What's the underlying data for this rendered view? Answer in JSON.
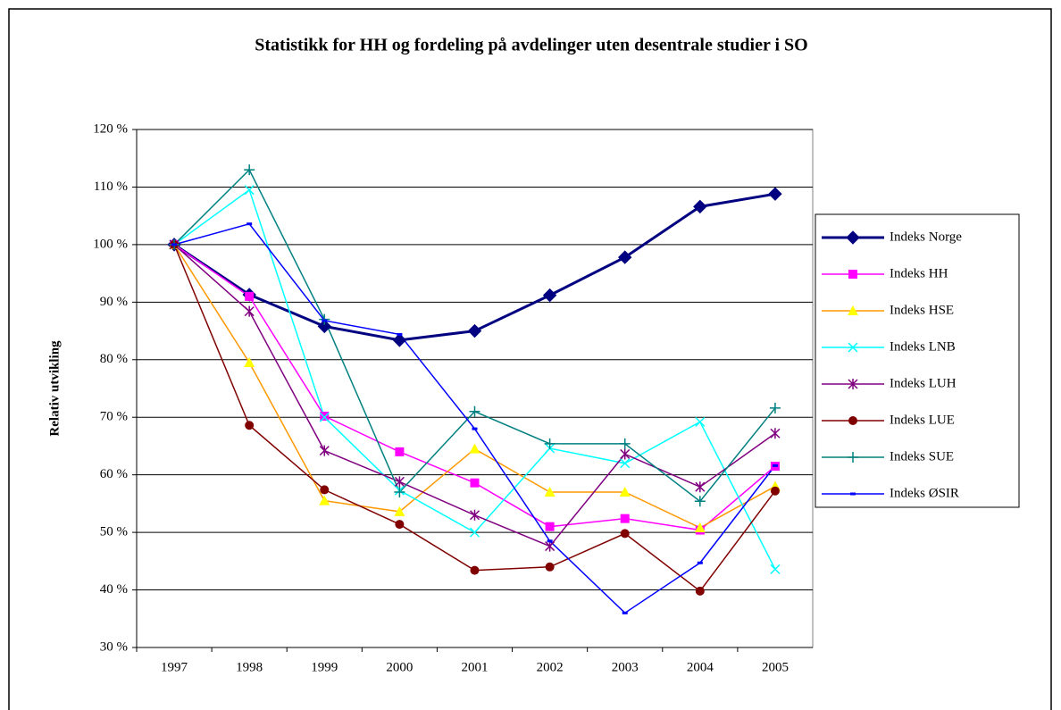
{
  "chart_data": {
    "type": "line",
    "title": "Statistikk for HH og fordeling på avdelinger uten desentrale studier i SO",
    "y_label": "Relativ utvikling",
    "categories": [
      "1997",
      "1998",
      "1999",
      "2000",
      "2001",
      "2002",
      "2003",
      "2004",
      "2005"
    ],
    "ylim": [
      30,
      120
    ],
    "yticks": [
      {
        "value": 30,
        "label": "30 %"
      },
      {
        "value": 40,
        "label": "40 %"
      },
      {
        "value": 50,
        "label": "50 %"
      },
      {
        "value": 60,
        "label": "60 %"
      },
      {
        "value": 70,
        "label": "70 %"
      },
      {
        "value": 80,
        "label": "80 %"
      },
      {
        "value": 90,
        "label": "90 %"
      },
      {
        "value": 100,
        "label": "100 %"
      },
      {
        "value": 110,
        "label": "110 %"
      },
      {
        "value": 120,
        "label": "120 %"
      }
    ],
    "grid": true,
    "legend": "right",
    "series": [
      {
        "name": "Indeks Norge",
        "color": "#000080",
        "marker": "diamond",
        "values": [
          100,
          91.3,
          85.8,
          83.4,
          85,
          91.2,
          97.8,
          106.6,
          108.8
        ]
      },
      {
        "name": "Indeks HH",
        "color": "#ff00ff",
        "marker": "square",
        "values": [
          100,
          91,
          70.2,
          64,
          58.6,
          51,
          52.4,
          50.4,
          61.5
        ]
      },
      {
        "name": "Indeks HSE",
        "color": "#ff9900",
        "marker_color": "#ffff00",
        "marker": "triangle",
        "values": [
          100,
          79.5,
          55.5,
          53.6,
          64.5,
          57,
          57,
          50.8,
          58
        ]
      },
      {
        "name": "Indeks LNB",
        "color": "#00ffff",
        "marker": "x",
        "values": [
          100,
          109.5,
          70,
          57.3,
          50,
          64.6,
          62,
          69.2,
          43.6
        ]
      },
      {
        "name": "Indeks LUH",
        "color": "#800080",
        "marker": "star",
        "values": [
          100,
          88.4,
          64.2,
          58.8,
          53,
          47.6,
          63.6,
          57.9,
          67.2
        ]
      },
      {
        "name": "Indeks LUE",
        "color": "#800000",
        "marker": "circle",
        "values": [
          100,
          68.6,
          57.4,
          51.4,
          43.4,
          44,
          49.8,
          39.8,
          57.2
        ]
      },
      {
        "name": "Indeks SUE",
        "color": "#008080",
        "marker": "plus",
        "values": [
          100,
          113,
          87,
          57,
          71,
          65.4,
          65.4,
          55.4,
          71.6
        ]
      },
      {
        "name": "Indeks ØSIR",
        "color": "#0000ff",
        "marker": "dash",
        "values": [
          100,
          103.6,
          86.8,
          84.4,
          68,
          48.5,
          36,
          44.7,
          61.6
        ]
      }
    ]
  }
}
